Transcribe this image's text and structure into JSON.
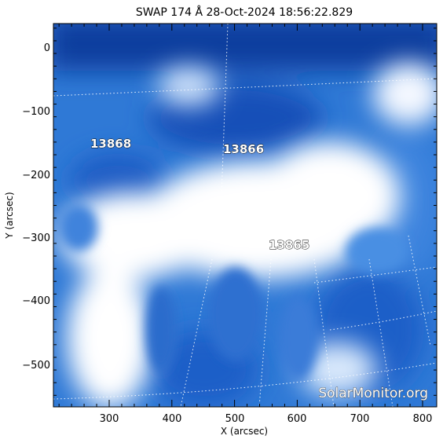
{
  "title": "SWAP 174 Å 28-Oct-2024 18:56:22.829",
  "x_axis": {
    "label": "X (arcsec)",
    "ticks": [
      "300",
      "400",
      "500",
      "600",
      "700",
      "800"
    ]
  },
  "y_axis": {
    "label": "Y (arcsec)",
    "ticks": [
      "0",
      "−100",
      "−200",
      "−300",
      "−400",
      "−500"
    ]
  },
  "active_regions": [
    "13868",
    "13866",
    "13865"
  ],
  "watermark": "SolarMonitor.org",
  "colors": {
    "deep": "#0a3fa8",
    "mid": "#3f85df",
    "bright": "#ffffff"
  }
}
